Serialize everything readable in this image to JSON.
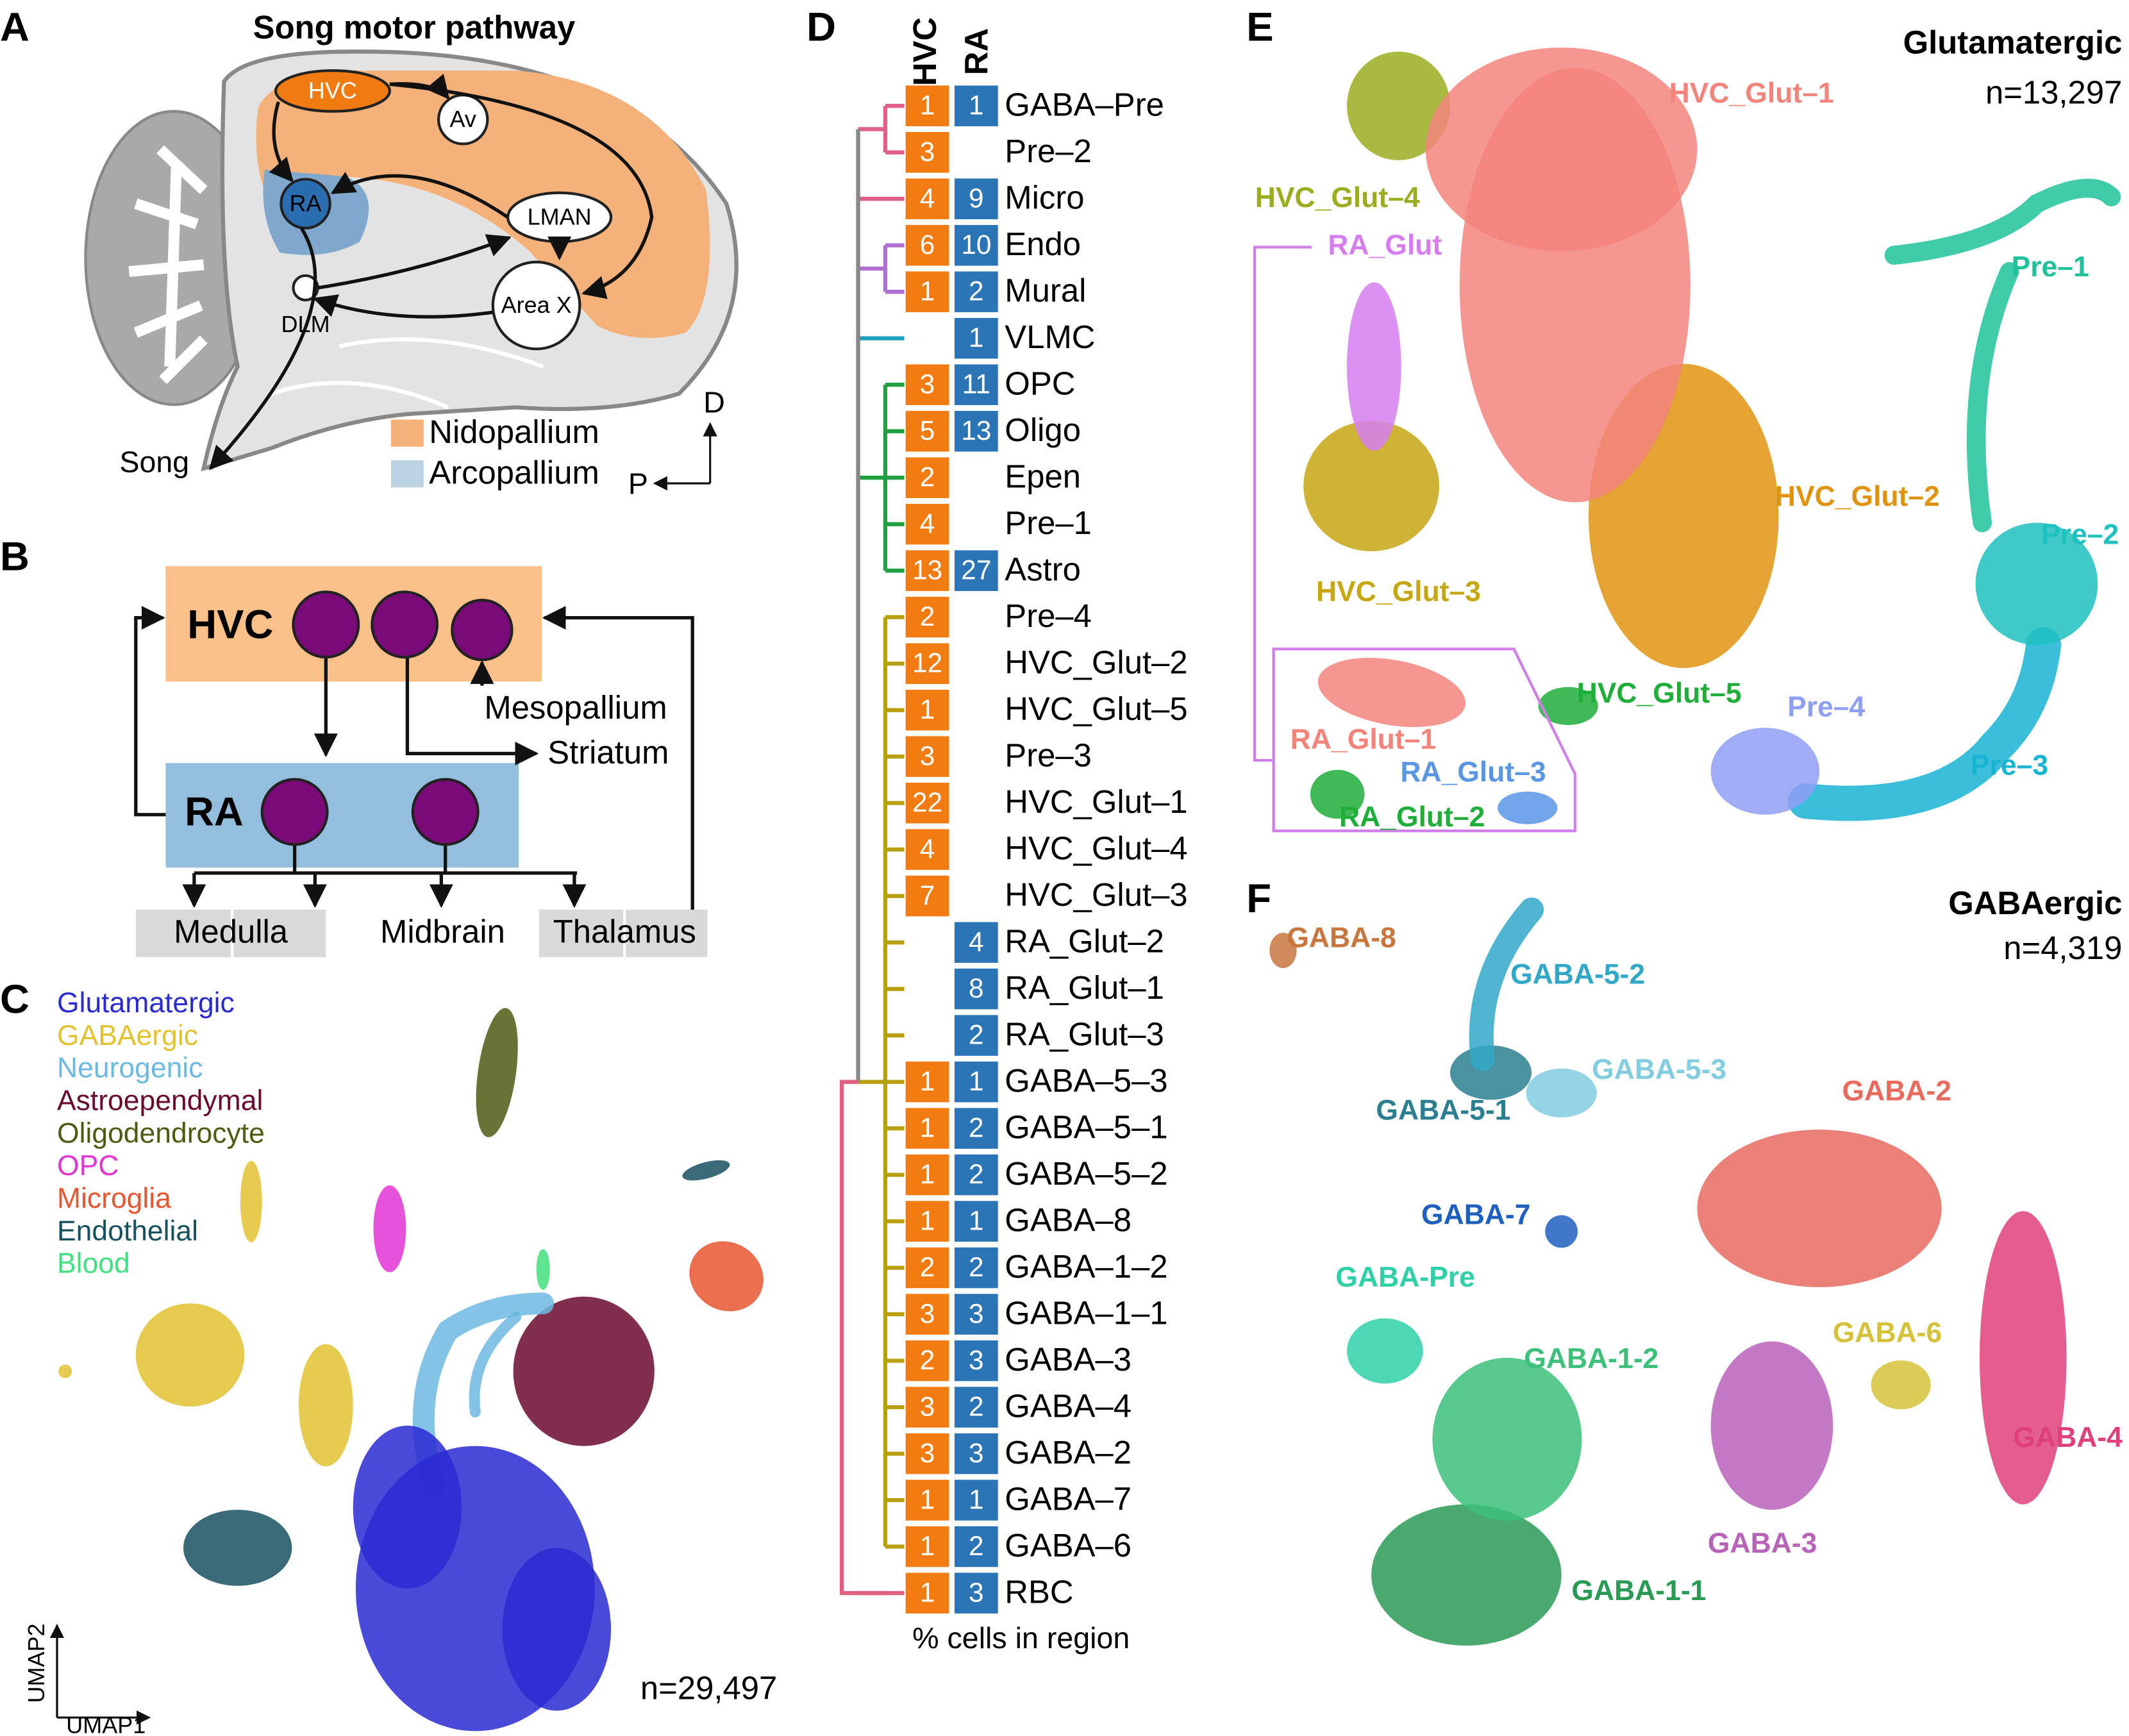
{
  "panel_a": {
    "label": "A",
    "title": "Song motor pathway",
    "nodes": [
      "HVC",
      "Av",
      "RA",
      "LMAN",
      "Area X",
      "DLM"
    ],
    "output": "Song",
    "legend": [
      "Nidopallium",
      "Arcopallium"
    ],
    "axes": [
      "D",
      "P"
    ]
  },
  "panel_b": {
    "label": "B",
    "regions": [
      "HVC",
      "RA"
    ],
    "targets": [
      "Mesopallium",
      "Striatum",
      "Medulla",
      "Midbrain",
      "Thalamus"
    ]
  },
  "panel_c": {
    "label": "C",
    "legend": [
      {
        "name": "Glutamatergic",
        "color": "#2a2ad2"
      },
      {
        "name": "GABAergic",
        "color": "#e3c232"
      },
      {
        "name": "Neurogenic",
        "color": "#6cb9e2"
      },
      {
        "name": "Astroependymal",
        "color": "#6b0b2e"
      },
      {
        "name": "Oligodendrocyte",
        "color": "#4d5c12"
      },
      {
        "name": "OPC",
        "color": "#e234d2"
      },
      {
        "name": "Microglia",
        "color": "#e8552f"
      },
      {
        "name": "Endothelial",
        "color": "#17505f"
      },
      {
        "name": "Blood",
        "color": "#42e07f"
      }
    ],
    "count": "n=29,497",
    "x_axis": "UMAP1",
    "y_axis": "UMAP2"
  },
  "panel_d": {
    "label": "D",
    "columns": [
      "HVC",
      "RA"
    ],
    "rows": [
      {
        "name": "GABA–Pre",
        "hvc": 1,
        "ra": 1
      },
      {
        "name": "Pre–2",
        "hvc": 3,
        "ra": null
      },
      {
        "name": "Micro",
        "hvc": 4,
        "ra": 9
      },
      {
        "name": "Endo",
        "hvc": 6,
        "ra": 10
      },
      {
        "name": "Mural",
        "hvc": 1,
        "ra": 2
      },
      {
        "name": "VLMC",
        "hvc": null,
        "ra": 1
      },
      {
        "name": "OPC",
        "hvc": 3,
        "ra": 11
      },
      {
        "name": "Oligo",
        "hvc": 5,
        "ra": 13
      },
      {
        "name": "Epen",
        "hvc": 2,
        "ra": null
      },
      {
        "name": "Pre–1",
        "hvc": 4,
        "ra": null
      },
      {
        "name": "Astro",
        "hvc": 13,
        "ra": 27
      },
      {
        "name": "Pre–4",
        "hvc": 2,
        "ra": null
      },
      {
        "name": "HVC_Glut–2",
        "hvc": 12,
        "ra": null
      },
      {
        "name": "HVC_Glut–5",
        "hvc": 1,
        "ra": null
      },
      {
        "name": "Pre–3",
        "hvc": 3,
        "ra": null
      },
      {
        "name": "HVC_Glut–1",
        "hvc": 22,
        "ra": null
      },
      {
        "name": "HVC_Glut–4",
        "hvc": 4,
        "ra": null
      },
      {
        "name": "HVC_Glut–3",
        "hvc": 7,
        "ra": null
      },
      {
        "name": "RA_Glut–2",
        "hvc": null,
        "ra": 4
      },
      {
        "name": "RA_Glut–1",
        "hvc": null,
        "ra": 8
      },
      {
        "name": "RA_Glut–3",
        "hvc": null,
        "ra": 2
      },
      {
        "name": "GABA–5–3",
        "hvc": 1,
        "ra": 1
      },
      {
        "name": "GABA–5–1",
        "hvc": 1,
        "ra": 2
      },
      {
        "name": "GABA–5–2",
        "hvc": 1,
        "ra": 2
      },
      {
        "name": "GABA–8",
        "hvc": 1,
        "ra": 1
      },
      {
        "name": "GABA–1–2",
        "hvc": 2,
        "ra": 2
      },
      {
        "name": "GABA–1–1",
        "hvc": 3,
        "ra": 3
      },
      {
        "name": "GABA–3",
        "hvc": 2,
        "ra": 3
      },
      {
        "name": "GABA–4",
        "hvc": 3,
        "ra": 2
      },
      {
        "name": "GABA–2",
        "hvc": 3,
        "ra": 3
      },
      {
        "name": "GABA–7",
        "hvc": 1,
        "ra": 1
      },
      {
        "name": "GABA–6",
        "hvc": 1,
        "ra": 2
      },
      {
        "name": "RBC",
        "hvc": 1,
        "ra": 3
      }
    ],
    "footer": "% cells in region"
  },
  "panel_e": {
    "label": "E",
    "title": "Glutamatergic",
    "count": "n=13,297",
    "clusters": [
      {
        "name": "HVC_Glut–1",
        "color": "#f3847c"
      },
      {
        "name": "HVC_Glut–4",
        "color": "#9aad20"
      },
      {
        "name": "RA_Glut",
        "color": "#d67ef0"
      },
      {
        "name": "Pre–1",
        "color": "#1fc29a"
      },
      {
        "name": "HVC_Glut–2",
        "color": "#e0930f"
      },
      {
        "name": "Pre–2",
        "color": "#1fc0c0"
      },
      {
        "name": "HVC_Glut–3",
        "color": "#c7a614"
      },
      {
        "name": "HVC_Glut–5",
        "color": "#1fae3a"
      },
      {
        "name": "Pre–4",
        "color": "#8f9ff5"
      },
      {
        "name": "Pre–3",
        "color": "#17b3d3"
      },
      {
        "name": "RA_Glut–1",
        "color": "#f3847c"
      },
      {
        "name": "RA_Glut–3",
        "color": "#5b95e6"
      },
      {
        "name": "RA_Glut–2",
        "color": "#1fae3a"
      }
    ]
  },
  "panel_f": {
    "label": "F",
    "title": "GABAergic",
    "count": "n=4,319",
    "clusters": [
      {
        "name": "GABA-8",
        "color": "#c8763e"
      },
      {
        "name": "GABA-5-2",
        "color": "#31a8c8"
      },
      {
        "name": "GABA-5-3",
        "color": "#82cde0"
      },
      {
        "name": "GABA-2",
        "color": "#e86a5f"
      },
      {
        "name": "GABA-5-1",
        "color": "#2b7f8f"
      },
      {
        "name": "GABA-7",
        "color": "#1f5fbf"
      },
      {
        "name": "GABA-Pre",
        "color": "#2fd0a8"
      },
      {
        "name": "GABA-6",
        "color": "#d6c23a"
      },
      {
        "name": "GABA-1-2",
        "color": "#3cc07a"
      },
      {
        "name": "GABA-4",
        "color": "#e0407a"
      },
      {
        "name": "GABA-3",
        "color": "#b862b8"
      },
      {
        "name": "GABA-1-1",
        "color": "#2a9a55"
      }
    ]
  }
}
